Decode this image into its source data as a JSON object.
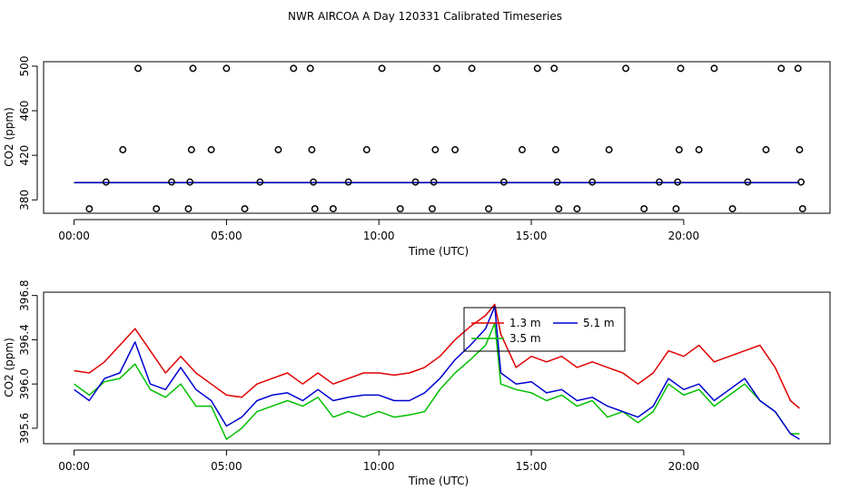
{
  "title": "NWR AIRCOA A  Day 120331  Calibrated Timeseries",
  "colors": {
    "red": "#e00000",
    "blue": "#0000d0",
    "green": "#00c000",
    "black": "#000000"
  },
  "chart_data": [
    {
      "type": "scatter",
      "xlabel": "Time (UTC)",
      "ylabel": "CO2 (ppm)",
      "xlim": [
        -1.0,
        24.8
      ],
      "ylim": [
        368,
        504
      ],
      "xticks": [
        0,
        5,
        10,
        15,
        20
      ],
      "xtick_labels": [
        "00:00",
        "05:00",
        "10:00",
        "15:00",
        "20:00"
      ],
      "yticks": [
        380,
        420,
        460,
        500
      ],
      "ytick_labels": [
        "380",
        "420",
        "460",
        "500"
      ],
      "points": [
        {
          "x": 0.5,
          "y": 372
        },
        {
          "x": 1.05,
          "y": 396
        },
        {
          "x": 1.6,
          "y": 425
        },
        {
          "x": 2.1,
          "y": 498
        },
        {
          "x": 2.7,
          "y": 372
        },
        {
          "x": 3.2,
          "y": 396
        },
        {
          "x": 3.75,
          "y": 372
        },
        {
          "x": 3.8,
          "y": 396
        },
        {
          "x": 3.85,
          "y": 425
        },
        {
          "x": 3.9,
          "y": 498
        },
        {
          "x": 4.5,
          "y": 425
        },
        {
          "x": 5.0,
          "y": 498
        },
        {
          "x": 5.6,
          "y": 372
        },
        {
          "x": 6.1,
          "y": 396
        },
        {
          "x": 6.7,
          "y": 425
        },
        {
          "x": 7.2,
          "y": 498
        },
        {
          "x": 7.75,
          "y": 498
        },
        {
          "x": 7.8,
          "y": 425
        },
        {
          "x": 7.85,
          "y": 396
        },
        {
          "x": 7.9,
          "y": 372
        },
        {
          "x": 8.5,
          "y": 372
        },
        {
          "x": 9.0,
          "y": 396
        },
        {
          "x": 9.6,
          "y": 425
        },
        {
          "x": 10.1,
          "y": 498
        },
        {
          "x": 10.7,
          "y": 372
        },
        {
          "x": 11.2,
          "y": 396
        },
        {
          "x": 11.75,
          "y": 372
        },
        {
          "x": 11.8,
          "y": 396
        },
        {
          "x": 11.85,
          "y": 425
        },
        {
          "x": 11.9,
          "y": 498
        },
        {
          "x": 12.5,
          "y": 425
        },
        {
          "x": 13.05,
          "y": 498
        },
        {
          "x": 13.6,
          "y": 372
        },
        {
          "x": 14.1,
          "y": 396
        },
        {
          "x": 14.7,
          "y": 425
        },
        {
          "x": 15.2,
          "y": 498
        },
        {
          "x": 15.75,
          "y": 498
        },
        {
          "x": 15.8,
          "y": 425
        },
        {
          "x": 15.85,
          "y": 396
        },
        {
          "x": 15.9,
          "y": 372
        },
        {
          "x": 16.5,
          "y": 372
        },
        {
          "x": 17.0,
          "y": 396
        },
        {
          "x": 17.55,
          "y": 425
        },
        {
          "x": 18.1,
          "y": 498
        },
        {
          "x": 18.7,
          "y": 372
        },
        {
          "x": 19.2,
          "y": 396
        },
        {
          "x": 19.75,
          "y": 372
        },
        {
          "x": 19.8,
          "y": 396
        },
        {
          "x": 19.85,
          "y": 425
        },
        {
          "x": 19.9,
          "y": 498
        },
        {
          "x": 20.5,
          "y": 425
        },
        {
          "x": 21.0,
          "y": 498
        },
        {
          "x": 21.6,
          "y": 372
        },
        {
          "x": 22.1,
          "y": 396
        },
        {
          "x": 22.7,
          "y": 425
        },
        {
          "x": 23.2,
          "y": 498
        },
        {
          "x": 23.75,
          "y": 498
        },
        {
          "x": 23.8,
          "y": 425
        },
        {
          "x": 23.85,
          "y": 396
        },
        {
          "x": 23.9,
          "y": 372
        }
      ],
      "series": [
        {
          "name": "1.3 m",
          "color": "#e00000",
          "x": [
            0,
            23.8
          ],
          "values": [
            395.6,
            395.6
          ]
        },
        {
          "name": "3.5 m",
          "color": "#00c000",
          "x": [
            0,
            23.8
          ],
          "values": [
            395.4,
            395.4
          ]
        },
        {
          "name": "5.1 m",
          "color": "#0000d0",
          "x": [
            0,
            23.8
          ],
          "values": [
            395.5,
            395.5
          ]
        }
      ]
    },
    {
      "type": "line",
      "xlabel": "Time (UTC)",
      "ylabel": "CO2 (ppm)",
      "xlim": [
        -1.0,
        24.8
      ],
      "ylim": [
        395.46,
        396.83
      ],
      "xticks": [
        0,
        5,
        10,
        15,
        20
      ],
      "xtick_labels": [
        "00:00",
        "05:00",
        "10:00",
        "15:00",
        "20:00"
      ],
      "yticks": [
        395.6,
        396.0,
        396.4,
        396.8
      ],
      "ytick_labels": [
        "395.6",
        "396.0",
        "396.4",
        "396.8"
      ],
      "x": [
        0,
        0.5,
        1.0,
        1.5,
        2.0,
        2.5,
        3.0,
        3.5,
        4.0,
        4.5,
        5.0,
        5.5,
        6.0,
        6.5,
        7.0,
        7.5,
        8.0,
        8.5,
        9.0,
        9.5,
        10.0,
        10.5,
        11.0,
        11.5,
        12.0,
        12.5,
        13.0,
        13.5,
        13.8,
        14.0,
        14.5,
        15.0,
        15.5,
        16.0,
        16.5,
        17.0,
        17.5,
        18.0,
        18.5,
        19.0,
        19.5,
        20.0,
        20.5,
        21.0,
        21.5,
        22.0,
        22.5,
        23.0,
        23.5,
        23.8
      ],
      "legend": {
        "position": "top-center"
      },
      "series": [
        {
          "name": "1.3 m",
          "color": "#e00000",
          "values": [
            396.12,
            396.1,
            396.2,
            396.35,
            396.5,
            396.3,
            396.1,
            396.25,
            396.1,
            396.0,
            395.9,
            395.88,
            396.0,
            396.05,
            396.1,
            396.0,
            396.1,
            396.0,
            396.05,
            396.1,
            396.1,
            396.08,
            396.1,
            396.15,
            396.25,
            396.4,
            396.52,
            396.62,
            396.72,
            396.45,
            396.15,
            396.25,
            396.2,
            396.25,
            396.15,
            396.2,
            396.15,
            396.1,
            396.0,
            396.1,
            396.3,
            396.25,
            396.35,
            396.2,
            396.25,
            396.3,
            396.35,
            396.15,
            395.85,
            395.78
          ]
        },
        {
          "name": "3.5 m",
          "color": "#00c000",
          "values": [
            396.0,
            395.9,
            396.02,
            396.05,
            396.18,
            395.95,
            395.88,
            396.0,
            395.8,
            395.8,
            395.5,
            395.6,
            395.75,
            395.8,
            395.85,
            395.8,
            395.88,
            395.7,
            395.75,
            395.7,
            395.75,
            395.7,
            395.72,
            395.75,
            395.95,
            396.1,
            396.22,
            396.35,
            396.55,
            396.0,
            395.95,
            395.92,
            395.85,
            395.9,
            395.8,
            395.85,
            395.7,
            395.75,
            395.65,
            395.75,
            396.0,
            395.9,
            395.95,
            395.8,
            395.9,
            396.0,
            395.85,
            395.75,
            395.55,
            395.55
          ]
        },
        {
          "name": "5.1 m",
          "color": "#0000d0",
          "values": [
            395.95,
            395.85,
            396.05,
            396.1,
            396.38,
            396.0,
            395.95,
            396.15,
            395.95,
            395.85,
            395.62,
            395.7,
            395.85,
            395.9,
            395.92,
            395.85,
            395.95,
            395.85,
            395.88,
            395.9,
            395.9,
            395.85,
            395.85,
            395.92,
            396.05,
            396.22,
            396.35,
            396.5,
            396.7,
            396.1,
            396.0,
            396.02,
            395.92,
            395.95,
            395.85,
            395.88,
            395.8,
            395.75,
            395.7,
            395.8,
            396.05,
            395.95,
            396.0,
            395.85,
            395.95,
            396.05,
            395.85,
            395.75,
            395.55,
            395.5
          ]
        }
      ]
    }
  ]
}
